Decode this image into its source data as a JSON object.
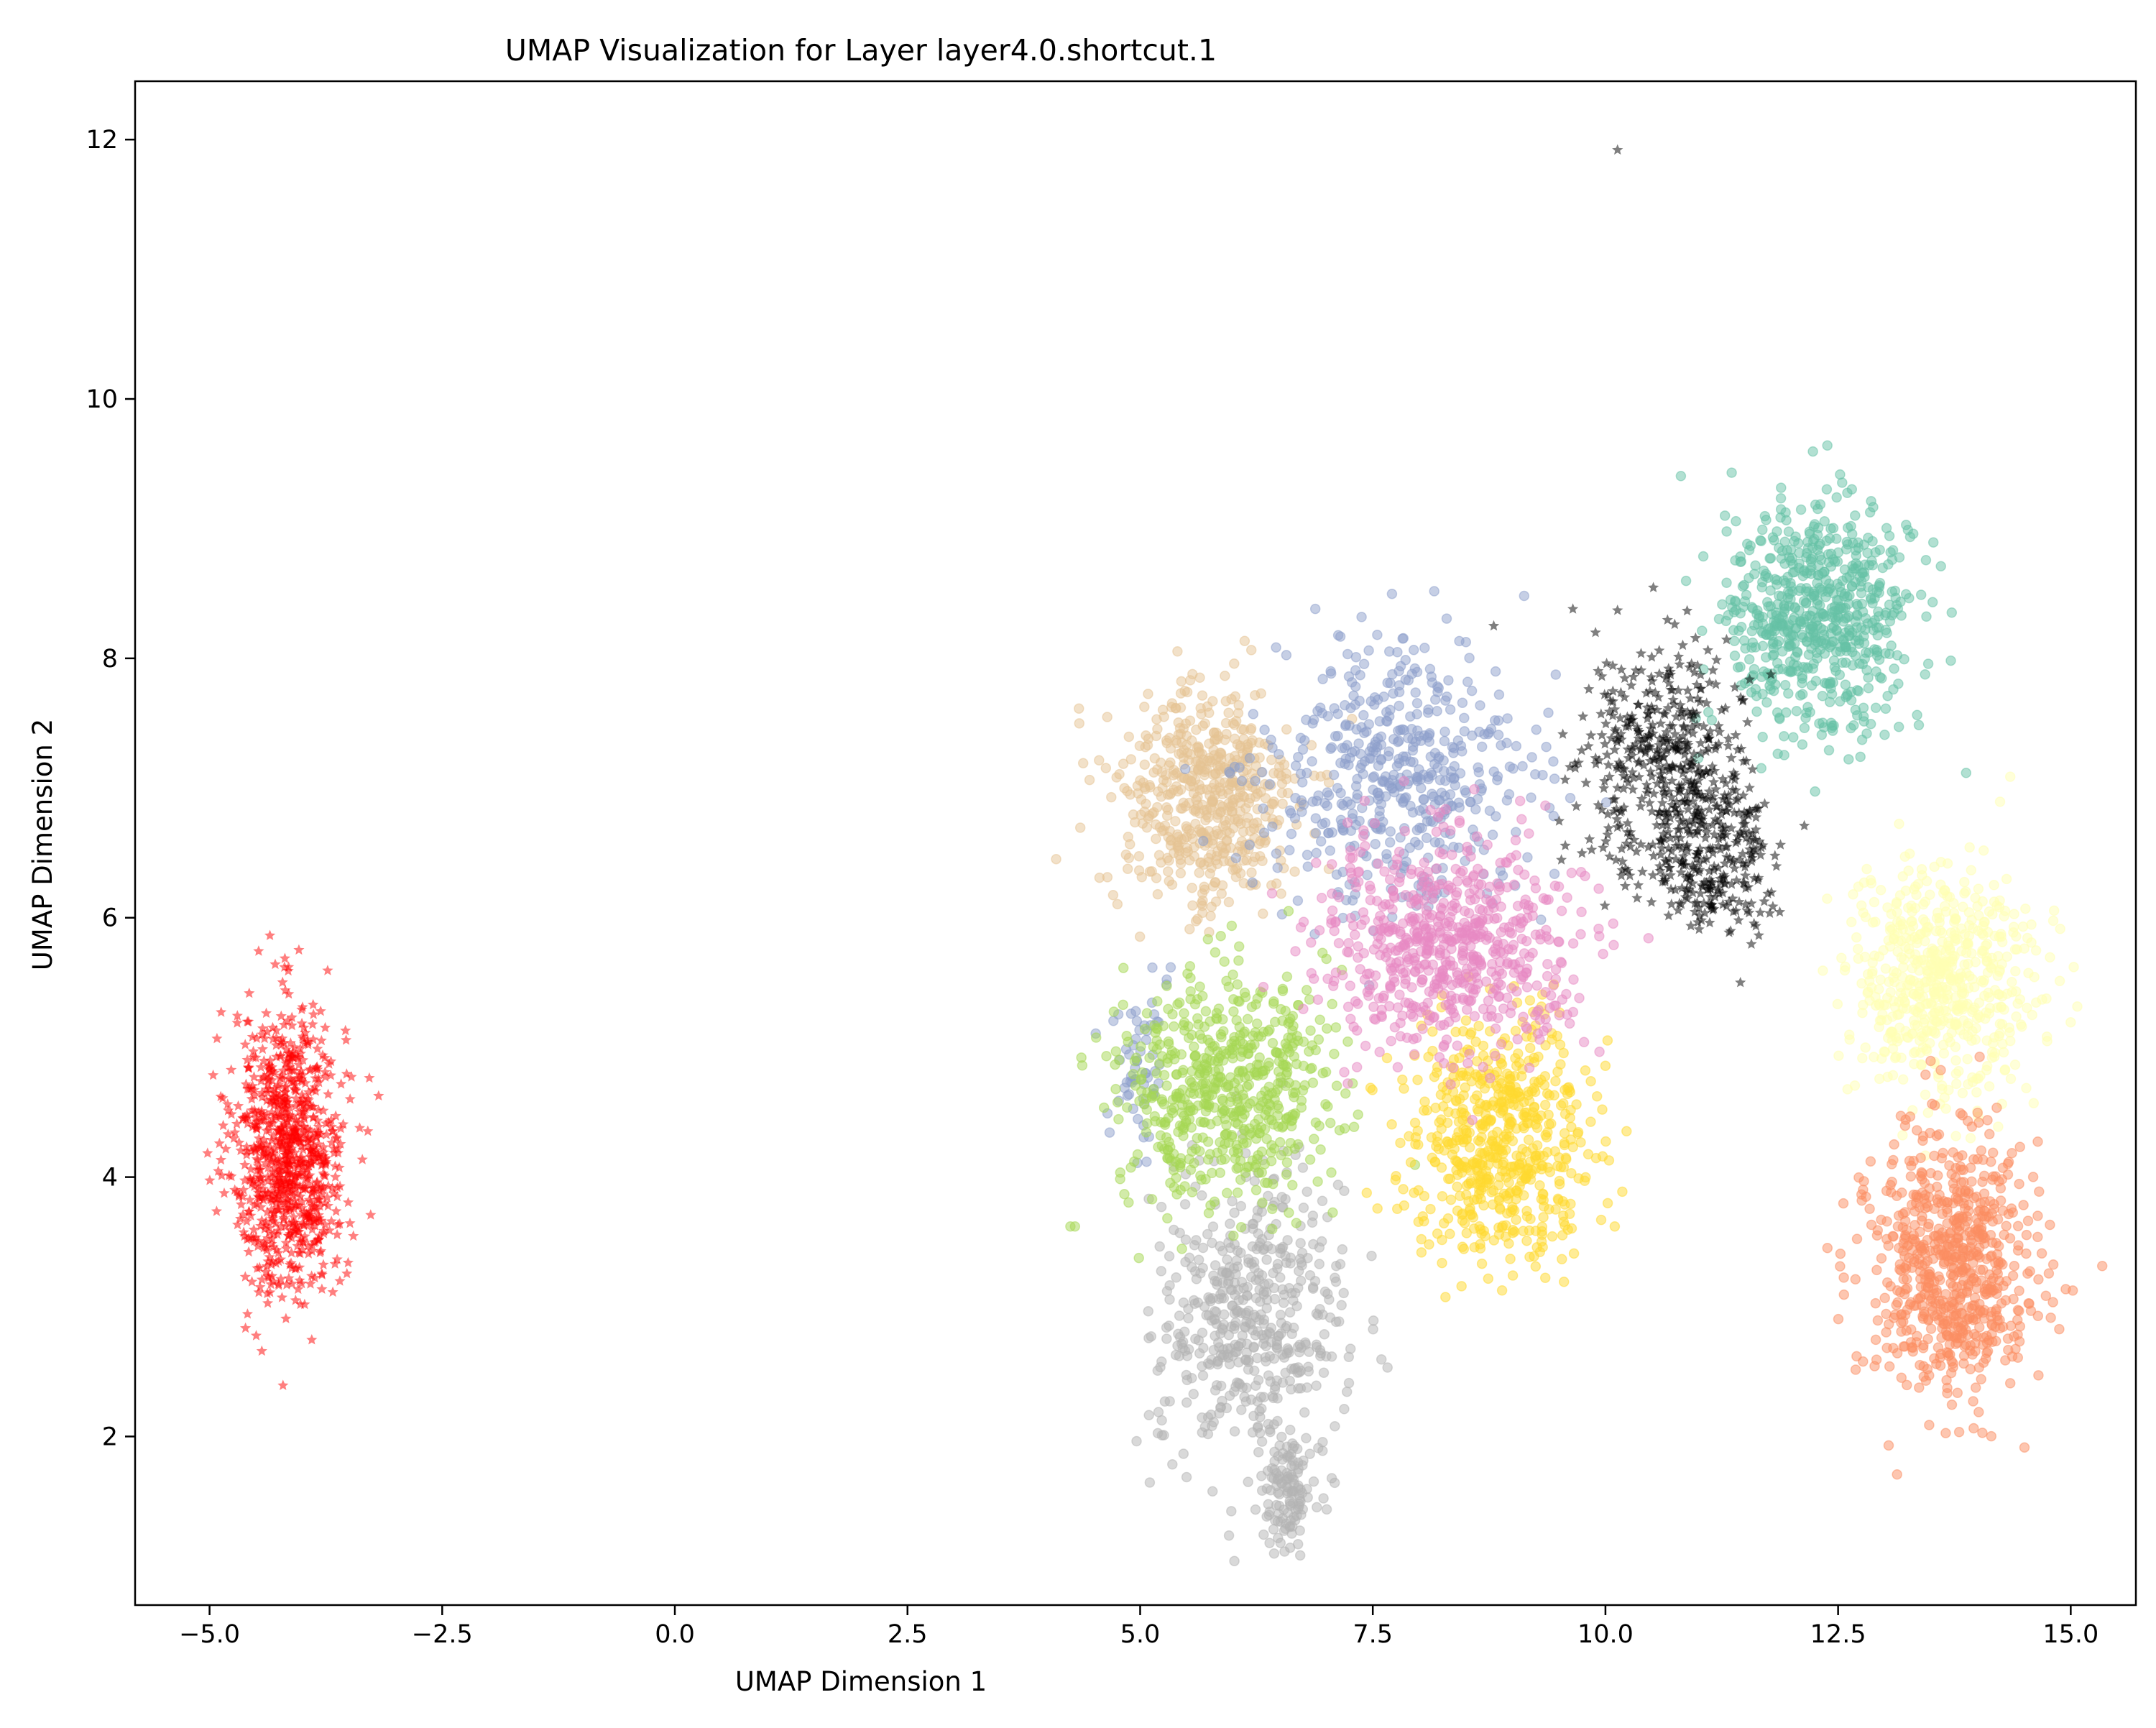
{
  "chart_data": {
    "type": "scatter",
    "title": "UMAP Visualization for Layer layer4.0.shortcut.1",
    "xlabel": "UMAP Dimension 1",
    "ylabel": "UMAP Dimension 2",
    "xlim": [
      -5.8,
      15.7
    ],
    "ylim": [
      0.7,
      12.45
    ],
    "xticks": [
      -5.0,
      -2.5,
      0.0,
      2.5,
      5.0,
      7.5,
      10.0,
      12.5,
      15.0
    ],
    "xtick_labels": [
      "−5.0",
      "−2.5",
      "0.0",
      "2.5",
      "5.0",
      "7.5",
      "10.0",
      "12.5",
      "15.0"
    ],
    "yticks": [
      2,
      4,
      6,
      8,
      10,
      12
    ],
    "ytick_labels": [
      "2",
      "4",
      "6",
      "8",
      "10",
      "12"
    ],
    "grid": false,
    "legend": "none",
    "marker_alpha": 0.5,
    "clusters": [
      {
        "color": "#ff0000",
        "marker": "star",
        "center": [
          -4.15,
          4.2
        ],
        "spread": [
          0.3,
          0.55
        ],
        "count": 900
      },
      {
        "color": "#b3b3b3",
        "marker": "circle",
        "center": [
          6.2,
          2.9
        ],
        "spread": [
          0.5,
          0.55
        ],
        "count": 500
      },
      {
        "color": "#b3b3b3",
        "marker": "circle",
        "center": [
          6.6,
          1.6
        ],
        "spread": [
          0.15,
          0.2
        ],
        "count": 120
      },
      {
        "color": "#e5c494",
        "marker": "circle",
        "center": [
          5.7,
          6.9
        ],
        "spread": [
          0.5,
          0.45
        ],
        "count": 550
      },
      {
        "color": "#8da0cb",
        "marker": "circle",
        "center": [
          7.8,
          7.1
        ],
        "spread": [
          0.7,
          0.5
        ],
        "count": 500
      },
      {
        "color": "#8da0cb",
        "marker": "circle",
        "center": [
          5.0,
          4.9
        ],
        "spread": [
          0.15,
          0.35
        ],
        "count": 60
      },
      {
        "color": "#a6d854",
        "marker": "circle",
        "center": [
          5.9,
          4.7
        ],
        "spread": [
          0.55,
          0.45
        ],
        "count": 600
      },
      {
        "color": "#ffd92f",
        "marker": "circle",
        "center": [
          8.9,
          4.3
        ],
        "spread": [
          0.5,
          0.45
        ],
        "count": 600
      },
      {
        "color": "#e78ac3",
        "marker": "circle",
        "center": [
          8.3,
          5.8
        ],
        "spread": [
          0.7,
          0.4
        ],
        "count": 650
      },
      {
        "color": "#66c2a5",
        "marker": "circle",
        "center": [
          12.3,
          8.3
        ],
        "spread": [
          0.5,
          0.45
        ],
        "count": 650
      },
      {
        "color": "#ffffb3",
        "marker": "circle",
        "center": [
          13.6,
          5.5
        ],
        "spread": [
          0.5,
          0.45
        ],
        "count": 600
      },
      {
        "color": "#fc8d62",
        "marker": "circle",
        "center": [
          13.7,
          3.3
        ],
        "spread": [
          0.45,
          0.5
        ],
        "count": 700
      },
      {
        "color": "#000000",
        "marker": "star",
        "center": [
          10.6,
          7.2
        ],
        "spread": [
          0.45,
          0.45
        ],
        "count": 450
      },
      {
        "color": "#000000",
        "marker": "star",
        "center": [
          11.2,
          6.5
        ],
        "spread": [
          0.3,
          0.3
        ],
        "count": 250
      }
    ],
    "outliers": [
      {
        "x": 10.13,
        "y": 11.92,
        "color": "#000000",
        "marker": "star"
      },
      {
        "x": 8.8,
        "y": 8.25,
        "color": "#000000",
        "marker": "star"
      },
      {
        "x": 9.65,
        "y": 8.38,
        "color": "#000000",
        "marker": "star"
      },
      {
        "x": 10.13,
        "y": 8.37,
        "color": "#000000",
        "marker": "star"
      },
      {
        "x": 11.45,
        "y": 5.5,
        "color": "#000000",
        "marker": "star"
      },
      {
        "x": 4.25,
        "y": 3.62,
        "color": "#a6d854",
        "marker": "circle"
      },
      {
        "x": 4.3,
        "y": 3.62,
        "color": "#a6d854",
        "marker": "circle"
      }
    ]
  }
}
